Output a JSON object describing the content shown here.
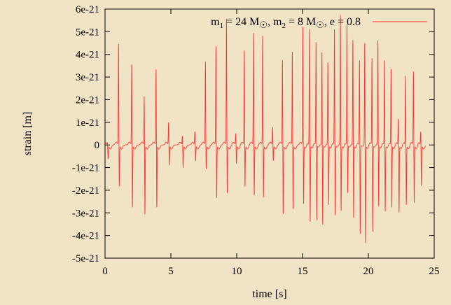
{
  "chart_data": {
    "type": "line",
    "title": "",
    "xlabel": "time [s]",
    "ylabel": "strain [m]",
    "xlim": [
      0,
      25
    ],
    "ylim": [
      -5e-21,
      6e-21
    ],
    "x_ticks": [
      0,
      5,
      10,
      15,
      20,
      25
    ],
    "x_tick_labels": [
      "0",
      "5",
      "10",
      "15",
      "20",
      "25"
    ],
    "y_ticks": [
      6e-21,
      5e-21,
      4e-21,
      3e-21,
      2e-21,
      1e-21,
      0,
      -1e-21,
      -2e-21,
      -3e-21,
      -4e-21,
      -5e-21
    ],
    "y_tick_labels": [
      "6e-21",
      "5e-21",
      "4e-21",
      "3e-21",
      "2e-21",
      "1e-21",
      "0",
      "-1e-21",
      "-2e-21",
      "-3e-21",
      "-4e-21",
      "-5e-21"
    ],
    "grid": false,
    "legend_position": "top-right",
    "series": [
      {
        "name": "m1 = 24 M☉, m2 = 8 M☉, e = 0.8",
        "color": "#ff3333",
        "legend": {
          "m1": "m",
          "m1sub": "1",
          "eq1": " = 24 M",
          "m2": ", m",
          "m2sub": "2",
          "eq2": " = 8 M",
          "etxt": ", e = 0.8"
        },
        "x_end": 24.35,
        "bursts": [
          {
            "t": 0.2,
            "pos": 1e-22,
            "neg": -6e-22
          },
          {
            "t": 1.05,
            "pos": 4.5e-21,
            "neg": -1.9e-21
          },
          {
            "t": 2.05,
            "pos": 3.6e-21,
            "neg": -2.8e-21
          },
          {
            "t": 3.0,
            "pos": 2.2e-21,
            "neg": -3.1e-21
          },
          {
            "t": 3.9,
            "pos": 3.4e-21,
            "neg": -2.8e-21
          },
          {
            "t": 4.85,
            "pos": 1e-21,
            "neg": -9e-22
          },
          {
            "t": 5.9,
            "pos": 4e-22,
            "neg": -1e-21
          },
          {
            "t": 6.85,
            "pos": 6e-22,
            "neg": -7e-22
          },
          {
            "t": 7.65,
            "pos": 3.7e-21,
            "neg": -1.1e-21
          },
          {
            "t": 8.45,
            "pos": 4.4e-21,
            "neg": -2.4e-21
          },
          {
            "t": 9.25,
            "pos": 5.6e-21,
            "neg": -2.2e-21
          },
          {
            "t": 9.95,
            "pos": 5e-22,
            "neg": -8e-22
          },
          {
            "t": 10.6,
            "pos": 4.2e-21,
            "neg": -1.9e-21
          },
          {
            "t": 11.3,
            "pos": 5e-21,
            "neg": -2.3e-21
          },
          {
            "t": 12.0,
            "pos": 4.9e-21,
            "neg": -2.4e-21
          },
          {
            "t": 12.75,
            "pos": 8e-22,
            "neg": -7e-22
          },
          {
            "t": 13.5,
            "pos": 3.8e-21,
            "neg": -3.1e-21
          },
          {
            "t": 14.25,
            "pos": 4.2e-21,
            "neg": -2.9e-21
          },
          {
            "t": 15.05,
            "pos": 5.3e-21,
            "neg": -2.7e-21
          },
          {
            "t": 15.55,
            "pos": 5.2e-21,
            "neg": -3.5e-21
          },
          {
            "t": 16.05,
            "pos": 4.6e-21,
            "neg": -3.4e-21
          },
          {
            "t": 16.5,
            "pos": 4.2e-21,
            "neg": -3.6e-21
          },
          {
            "t": 16.95,
            "pos": 3.7e-21,
            "neg": -2.7e-21
          },
          {
            "t": 17.45,
            "pos": 5.2e-21,
            "neg": -3.2e-21
          },
          {
            "t": 17.9,
            "pos": 5.8e-21,
            "neg": -3e-21
          },
          {
            "t": 18.4,
            "pos": 5.4e-21,
            "neg": -2.2e-21
          },
          {
            "t": 18.85,
            "pos": 4.7e-21,
            "neg": -3.3e-21
          },
          {
            "t": 19.35,
            "pos": 3.8e-21,
            "neg": -4e-21
          },
          {
            "t": 19.75,
            "pos": 4.6e-21,
            "neg": -4.4e-21
          },
          {
            "t": 20.3,
            "pos": 3.9e-21,
            "neg": -3.9e-21
          },
          {
            "t": 20.75,
            "pos": 4.7e-21,
            "neg": -2.8e-21
          },
          {
            "t": 21.25,
            "pos": 3.8e-21,
            "neg": -3e-21
          },
          {
            "t": 21.75,
            "pos": 3.4e-21,
            "neg": -2.8e-21
          },
          {
            "t": 22.3,
            "pos": 1.2e-21,
            "neg": -3e-21
          },
          {
            "t": 22.85,
            "pos": 3.1e-21,
            "neg": -2.7e-21
          },
          {
            "t": 23.45,
            "pos": 3.3e-21,
            "neg": -2.6e-21
          },
          {
            "t": 24.0,
            "pos": 6e-22,
            "neg": -1.8e-21
          }
        ]
      }
    ]
  }
}
